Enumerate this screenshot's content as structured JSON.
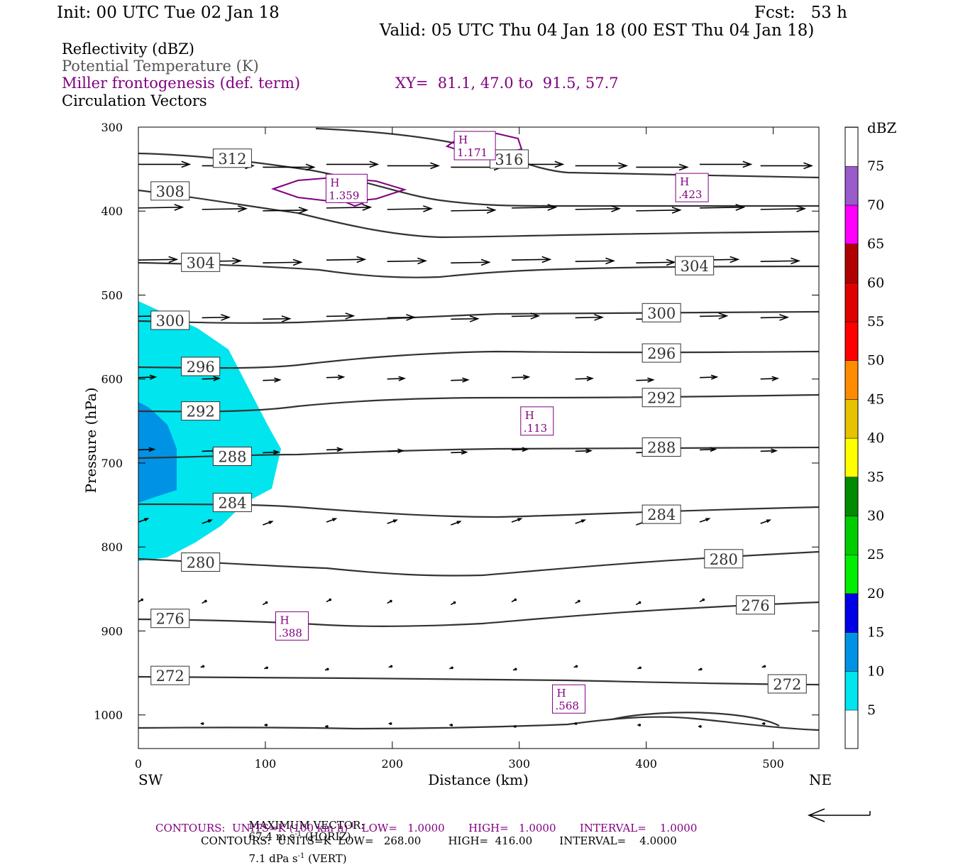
{
  "header": {
    "init": "Init: 00 UTC Tue 02 Jan 18",
    "fcst": "Fcst:   53 h",
    "valid": "Valid: 05 UTC Thu 04 Jan 18 (00 EST Thu 04 Jan 18)",
    "line1": "Reflectivity (dBZ)",
    "line2": "Potential Temperature (K)",
    "line3": "Miller frontogenesis (def. term)",
    "xy": "XY=  81.1, 47.0 to  91.5, 57.7",
    "line4": "Circulation Vectors"
  },
  "footer": {
    "maxvec_label": "MAXIMUM VECTOR:",
    "maxvec_h": "67.4 m s",
    "maxvec_h_exp": "-1",
    "maxvec_h_suffix": " (HORIZ)",
    "maxvec_v": "7.1 dPa s",
    "maxvec_v_exp": "-1",
    "maxvec_v_suffix": " (VERT)",
    "contours_purple_a": "CONTOURS:  UNITS=K (100 km h)",
    "contours_purple_exp": "-1",
    "contours_purple_b": "  LOW=   1.0000       HIGH=   1.0000       INTERVAL=    1.0000",
    "contours_black": "CONTOURS:  UNITS=K  LOW=   268.00        HIGH=  416.00        INTERVAL=    4.0000"
  },
  "colors": {
    "refl_5": "#00e5ee",
    "refl_10": "#0093e5",
    "theta": "#333333",
    "fronto": "#800080"
  },
  "chart_data": {
    "type": "cross-section",
    "xlabel": "Distance (km)",
    "ylabel": "Pressure (hPa)",
    "x_ticks": [
      0,
      100,
      200,
      300,
      400,
      500
    ],
    "y_ticks": [
      300,
      400,
      500,
      600,
      700,
      800,
      900,
      1000
    ],
    "xlim": [
      0,
      536
    ],
    "ylim": [
      300,
      1040
    ],
    "x_end_labels": {
      "left": "SW",
      "right": "NE"
    },
    "colorbar": {
      "title": "dBZ",
      "levels": [
        "5",
        "10",
        "15",
        "20",
        "25",
        "30",
        "35",
        "40",
        "45",
        "50",
        "55",
        "60",
        "65",
        "70",
        "75"
      ],
      "colors": [
        "#00e5ee",
        "#0093e5",
        "#0000e6",
        "#00ee00",
        "#00cd00",
        "#008b00",
        "#ffff00",
        "#e5c300",
        "#ff8c00",
        "#ff0000",
        "#e00000",
        "#b00000",
        "#ff00ff",
        "#9a5bcc",
        "#ffffff"
      ]
    },
    "theta_labels": [
      {
        "v": "312",
        "x": 74,
        "p": 337
      },
      {
        "v": "316",
        "x": 292,
        "p": 338
      },
      {
        "v": "308",
        "x": 25,
        "p": 376
      },
      {
        "v": "304",
        "x": 49,
        "p": 461
      },
      {
        "v": "304",
        "x": 438,
        "p": 465
      },
      {
        "v": "300",
        "x": 25,
        "p": 530
      },
      {
        "v": "300",
        "x": 412,
        "p": 521
      },
      {
        "v": "296",
        "x": 49,
        "p": 585
      },
      {
        "v": "296",
        "x": 412,
        "p": 569
      },
      {
        "v": "292",
        "x": 49,
        "p": 638
      },
      {
        "v": "292",
        "x": 412,
        "p": 622
      },
      {
        "v": "288",
        "x": 74,
        "p": 692
      },
      {
        "v": "288",
        "x": 412,
        "p": 681
      },
      {
        "v": "284",
        "x": 74,
        "p": 747
      },
      {
        "v": "284",
        "x": 412,
        "p": 761
      },
      {
        "v": "280",
        "x": 49,
        "p": 818
      },
      {
        "v": "280",
        "x": 461,
        "p": 814
      },
      {
        "v": "276",
        "x": 25,
        "p": 885
      },
      {
        "v": "276",
        "x": 486,
        "p": 869
      },
      {
        "v": "272",
        "x": 25,
        "p": 953
      },
      {
        "v": "272",
        "x": 511,
        "p": 963
      }
    ],
    "fronto_maxima": [
      {
        "label": "H",
        "value": "1.171",
        "x": 265,
        "p": 322
      },
      {
        "label": "H",
        "value": "1.359",
        "x": 164,
        "p": 373
      },
      {
        "label": "H",
        "value": ".423",
        "x": 436,
        "p": 372
      },
      {
        "label": "H",
        "value": ".113",
        "x": 314,
        "p": 650
      },
      {
        "label": "H",
        "value": ".388",
        "x": 121,
        "p": 894
      },
      {
        "label": "H",
        "value": ".568",
        "x": 339,
        "p": 981
      }
    ]
  }
}
